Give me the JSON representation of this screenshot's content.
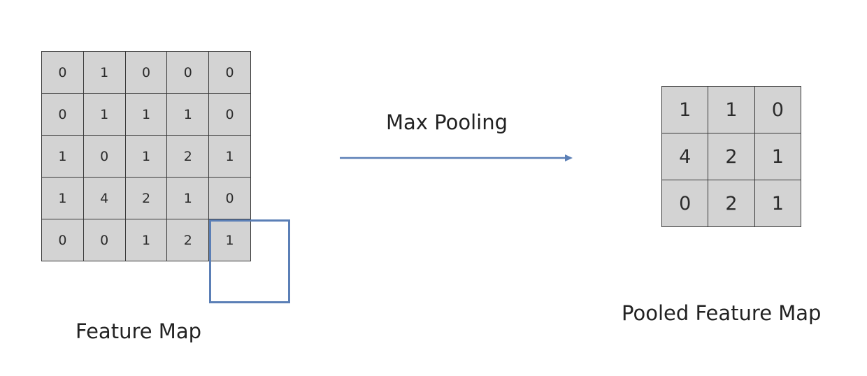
{
  "feature_map": {
    "label": "Feature Map",
    "rows": [
      [
        "0",
        "1",
        "0",
        "0",
        "0"
      ],
      [
        "0",
        "1",
        "1",
        "1",
        "0"
      ],
      [
        "1",
        "0",
        "1",
        "2",
        "1"
      ],
      [
        "1",
        "4",
        "2",
        "1",
        "0"
      ],
      [
        "0",
        "0",
        "1",
        "2",
        "1"
      ]
    ]
  },
  "operation": {
    "label": "Max Pooling",
    "arrow_color": "#5b7fb6"
  },
  "pooled_map": {
    "label": "Pooled Feature Map",
    "rows": [
      [
        "1",
        "1",
        "0"
      ],
      [
        "4",
        "2",
        "1"
      ],
      [
        "0",
        "2",
        "1"
      ]
    ]
  },
  "colors": {
    "cell_fill": "#d3d3d3",
    "grid_line": "#3a3a3a",
    "window_border": "#5b7fb6"
  }
}
